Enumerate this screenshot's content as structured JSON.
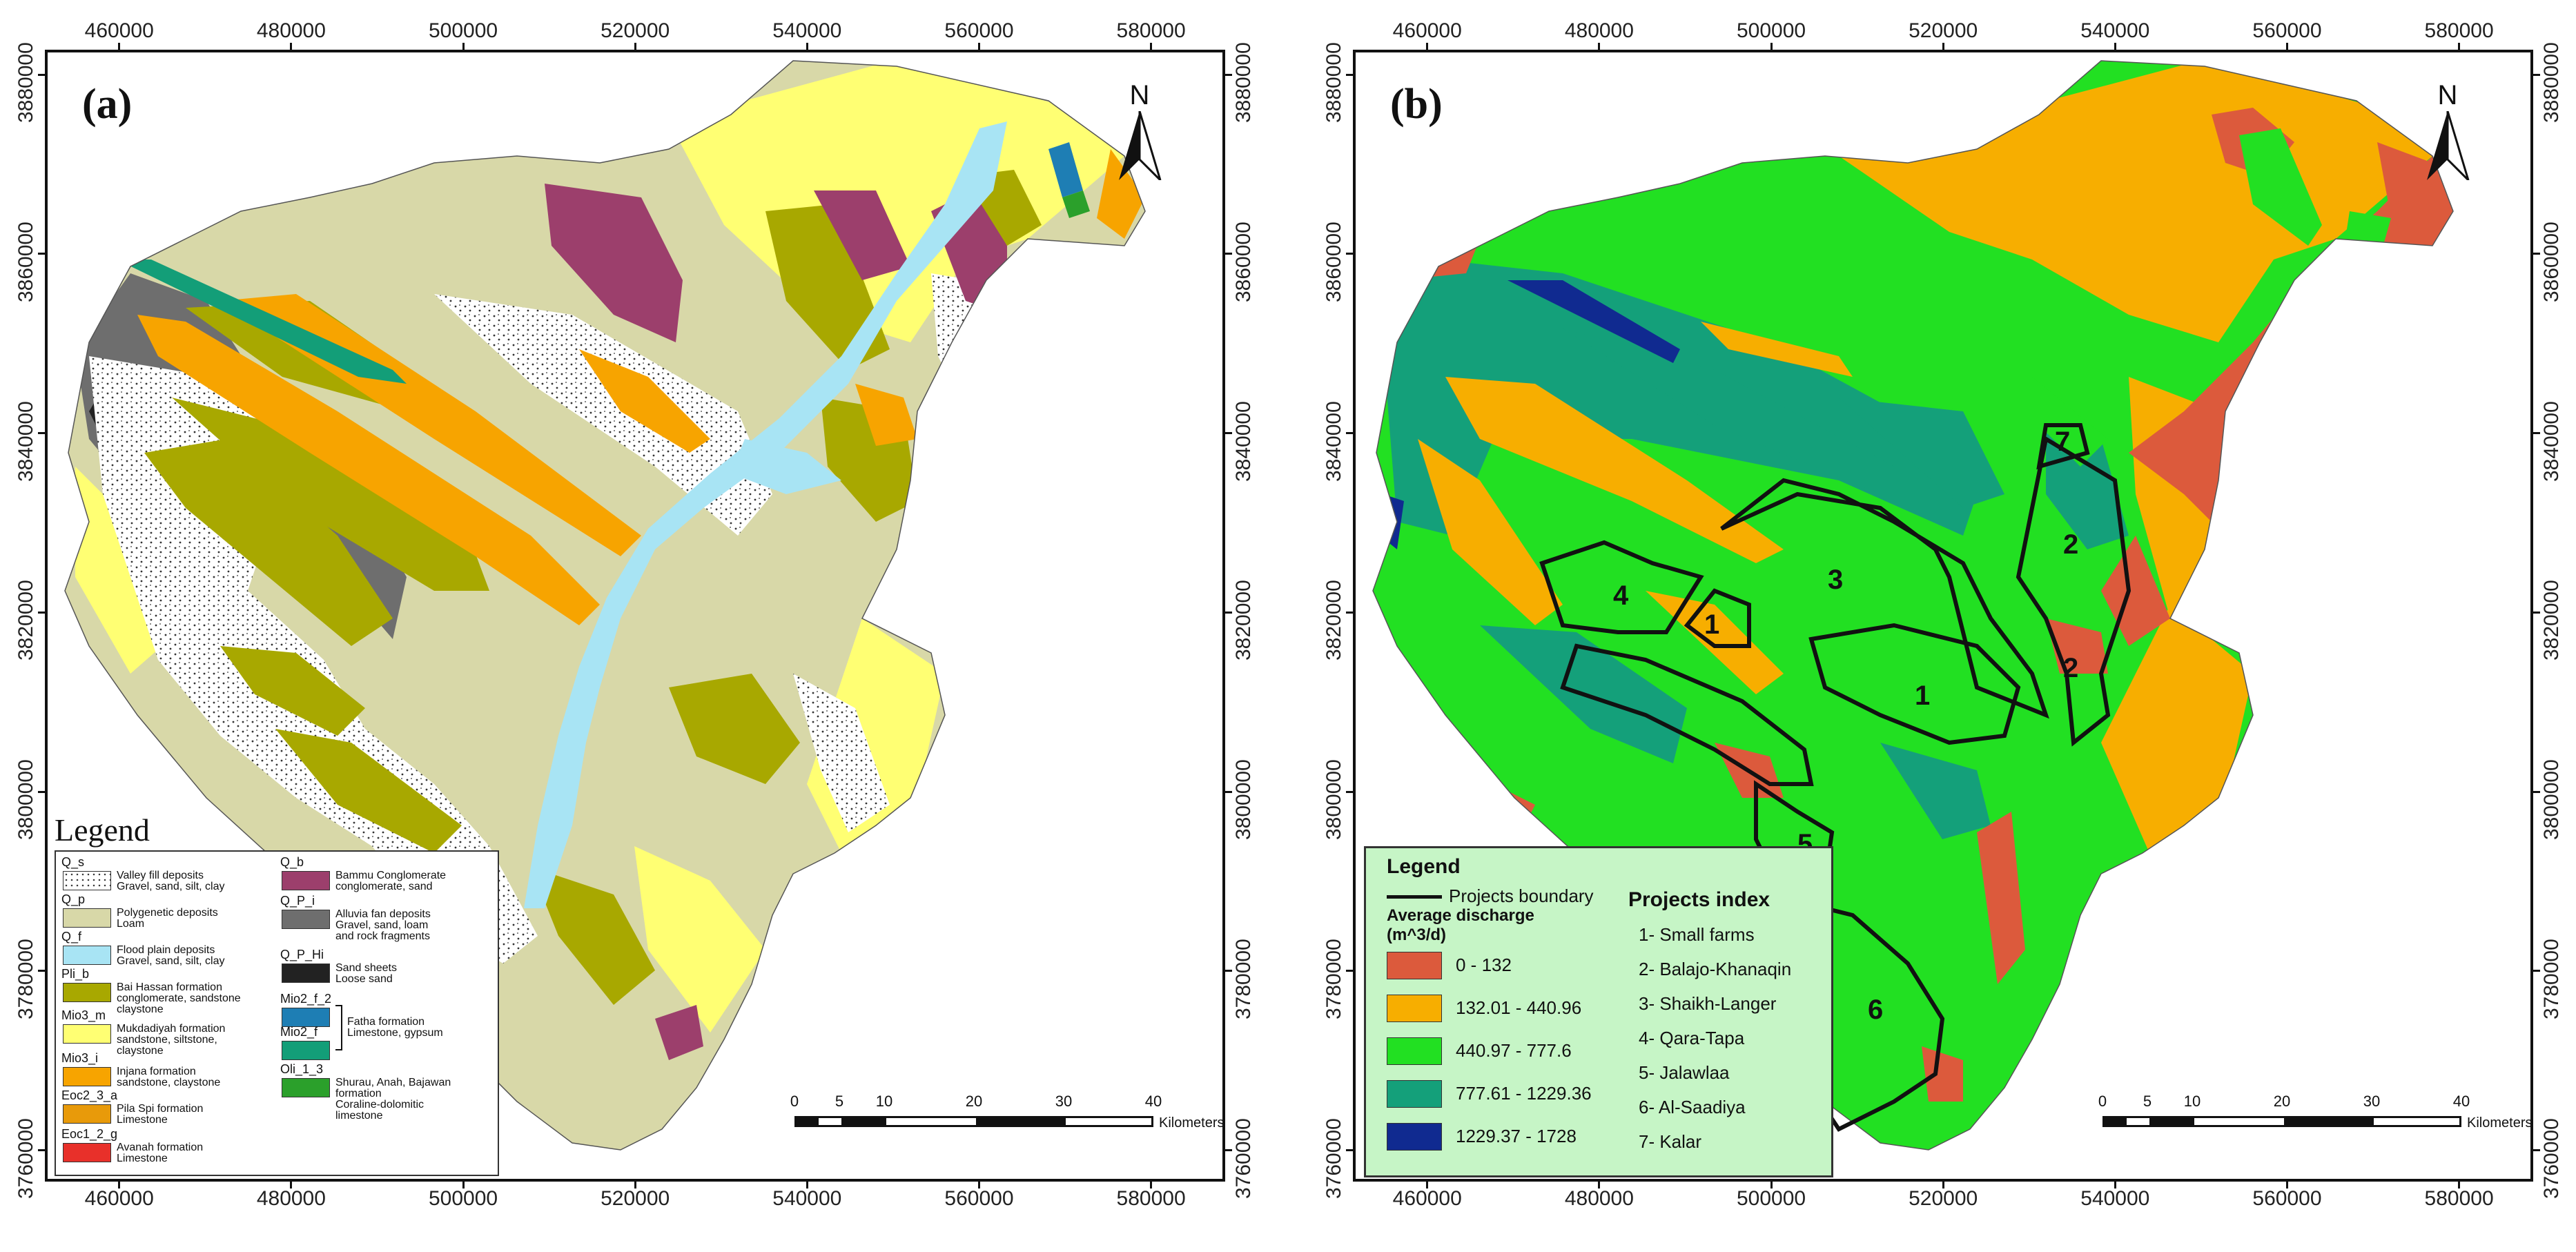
{
  "axes": {
    "x_ticks": [
      "460000",
      "480000",
      "500000",
      "520000",
      "540000",
      "560000",
      "580000"
    ],
    "y_ticks": [
      "3880000",
      "3860000",
      "3840000",
      "3820000",
      "3800000",
      "3780000",
      "3760000"
    ]
  },
  "north_label": "N",
  "scalebar": {
    "labels": [
      "0",
      "5",
      "10",
      "20",
      "30",
      "40"
    ],
    "unit": "Kilometers"
  },
  "colors": {
    "Q_s": "#ffffff",
    "Q_p": "#d8d8a8",
    "Q_f": "#a8e4f4",
    "Pli_b": "#a8a800",
    "Mio3_m": "#ffff73",
    "Mio3_i": "#f7a400",
    "Eoc2_3_a": "#e89a0a",
    "Eoc1_2_g": "#e8302a",
    "Q_b": "#9c3f6c",
    "Q_P_i": "#6e6e6e",
    "Q_P_Hi": "#222222",
    "Mio2_f_2": "#1e7eb4",
    "Mio2_f": "#139e78",
    "Oli_1_3": "#2ba02b",
    "d1": "#dc5a3c",
    "d2": "#f7ae00",
    "d3": "#22e022",
    "d4": "#14a07a",
    "d5": "#102a90",
    "legend_b_bg": "#c6f5c6"
  },
  "panel_a": {
    "letter": "(a)",
    "legend_title": "Legend",
    "legend_left": [
      {
        "code": "Q_s",
        "desc": [
          "Valley fill deposits",
          "Gravel, sand, silt, clay"
        ]
      },
      {
        "code": "Q_p",
        "desc": [
          "Polygenetic deposits",
          "Loam"
        ]
      },
      {
        "code": "Q_f",
        "desc": [
          "Flood plain deposits",
          "Gravel, sand, silt, clay"
        ]
      },
      {
        "code": "Pli_b",
        "desc": [
          "Bai Hassan formation",
          "conglomerate, sandstone",
          "claystone"
        ]
      },
      {
        "code": "Mio3_m",
        "desc": [
          "Mukdadiyah formation",
          "sandstone, siltstone,",
          "claystone"
        ]
      },
      {
        "code": "Mio3_i",
        "desc": [
          "Injana formation",
          "sandstone, claystone"
        ]
      },
      {
        "code": "Eoc2_3_a",
        "desc": [
          "Pila Spi formation",
          "Limestone"
        ]
      },
      {
        "code": "Eoc1_2_g",
        "desc": [
          "Avanah formation",
          "Limestone"
        ]
      }
    ],
    "legend_right": [
      {
        "code": "Q_b",
        "desc": [
          "Bammu Conglomerate",
          "conglomerate, sand"
        ]
      },
      {
        "code": "Q_P_i",
        "desc": [
          "Alluvia fan  deposits",
          "Gravel, sand, loam",
          "and rock fragments"
        ]
      },
      {
        "code": "Q_P_Hi",
        "desc": [
          "Sand sheets",
          "Loose sand"
        ]
      },
      {
        "code": "Mio2_f_2",
        "desc": []
      },
      {
        "code": "Mio2_f",
        "desc": []
      },
      {
        "code": "Oli_1_3",
        "desc": [
          "Shurau, Anah, Bajawan",
          "formation",
          "Coraline-dolomitic",
          "limestone"
        ]
      }
    ],
    "fatha_label": [
      "Fatha formation",
      "Limestone, gypsum"
    ]
  },
  "panel_b": {
    "letter": "(b)",
    "legend_title": "Legend",
    "boundary_label": "Projects boundary",
    "discharge_title": [
      "Average discharge",
      "(m^3/d)"
    ],
    "classes": [
      "0 - 132",
      "132.01 - 440.96",
      "440.97 - 777.6",
      "777.61 - 1229.36",
      "1229.37 - 1728"
    ],
    "index_title": "Projects index",
    "projects": [
      "1- Small farms",
      "2- Balajo-Khanaqin",
      "3- Shaikh-Langer",
      "4- Qara-Tapa",
      "5- Jalawlaa",
      "6- Al-Saadiya",
      "7- Kalar"
    ],
    "map_labels": [
      "7",
      "2",
      "3",
      "4",
      "1",
      "2",
      "1",
      "5",
      "6"
    ]
  }
}
